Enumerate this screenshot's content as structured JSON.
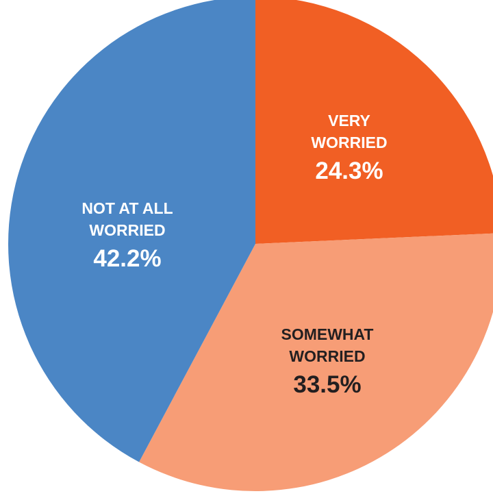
{
  "chart_data": {
    "type": "pie",
    "title": "",
    "start_angle_deg": 0,
    "direction": "clockwise",
    "slices": [
      {
        "label_lines": [
          "VERY",
          "WORRIED"
        ],
        "value": 24.3,
        "value_label": "24.3%",
        "color": "#f15f24",
        "text_color": "#ffffff"
      },
      {
        "label_lines": [
          "SOMEWHAT",
          "WORRIED"
        ],
        "value": 33.5,
        "value_label": "33.5%",
        "color": "#f79d76",
        "text_color": "#231f20"
      },
      {
        "label_lines": [
          "NOT AT ALL",
          "WORRIED"
        ],
        "value": 42.2,
        "value_label": "42.2%",
        "color": "#4b86c5",
        "text_color": "#ffffff"
      }
    ]
  }
}
